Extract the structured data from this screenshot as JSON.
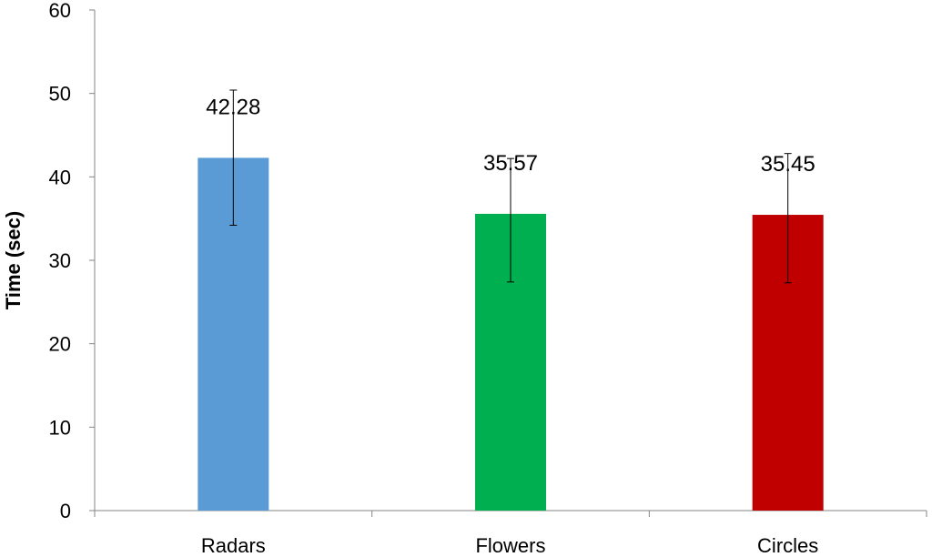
{
  "chart_data": {
    "type": "bar",
    "categories": [
      "Radars",
      "Flowers",
      "Circles"
    ],
    "values": [
      42.28,
      35.57,
      35.45
    ],
    "value_labels": [
      "42.28",
      "35.57",
      "35.45"
    ],
    "error_bars": [
      {
        "low": 34.2,
        "high": 50.4
      },
      {
        "low": 27.4,
        "high": 42.2
      },
      {
        "low": 27.3,
        "high": 42.8
      }
    ],
    "colors": [
      "#5B9BD5",
      "#00B050",
      "#C00000"
    ],
    "title": "",
    "xlabel": "",
    "ylabel": "Time (sec)",
    "ylim": [
      0,
      60
    ],
    "yticks": [
      0,
      10,
      20,
      30,
      40,
      50,
      60
    ],
    "grid": false,
    "legend": "none"
  }
}
